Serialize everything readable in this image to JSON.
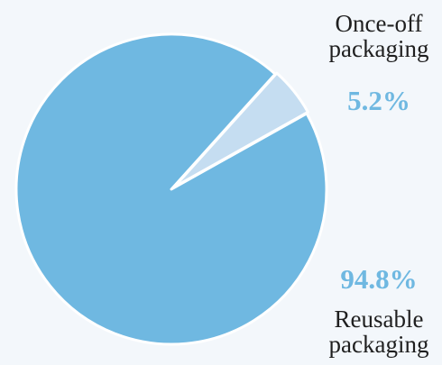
{
  "chart_data": {
    "type": "pie",
    "slices": [
      {
        "name": "Reusable packaging",
        "label_lines": [
          "Reusable",
          "packaging"
        ],
        "value": 94.8,
        "value_label": "94.8%",
        "color": "#6fb8e1"
      },
      {
        "name": "Once-off packaging",
        "label_lines": [
          "Once-off",
          "packaging"
        ],
        "value": 5.2,
        "value_label": "5.2%",
        "color": "#c5ddf1"
      }
    ],
    "background": "#f3f7fb",
    "separator_color": "#ffffff"
  }
}
